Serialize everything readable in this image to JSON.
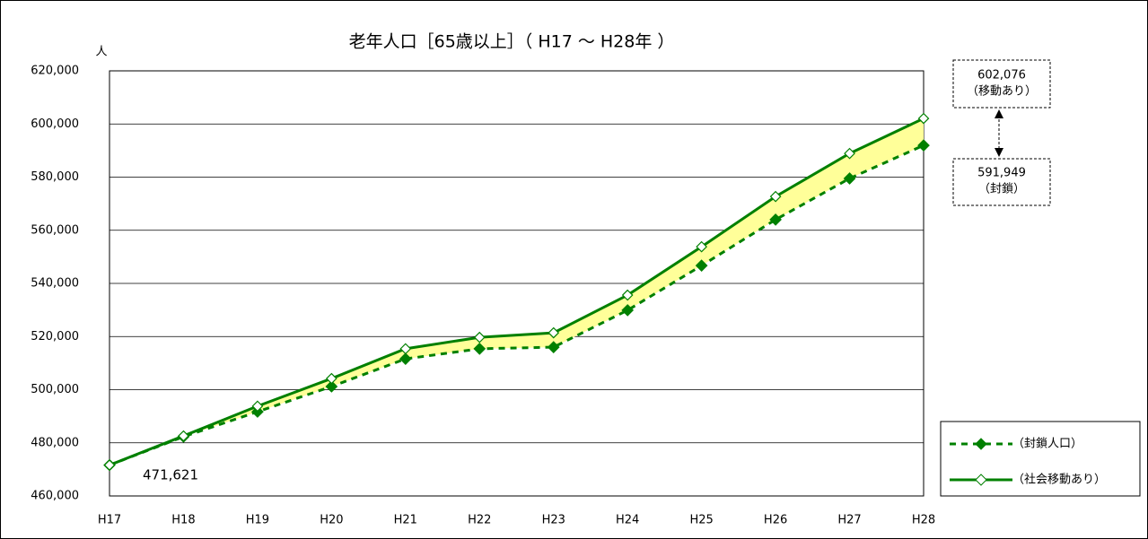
{
  "chart_data": {
    "type": "line",
    "title": "老年人口［65歳以上］（ H17 ～ H28年 ）",
    "y_label": "人",
    "categories": [
      "H17",
      "H18",
      "H19",
      "H20",
      "H21",
      "H22",
      "H23",
      "H24",
      "H25",
      "H26",
      "H27",
      "H28"
    ],
    "series": [
      {
        "name": "（封鎖人口）",
        "color": "#008000",
        "values": [
          471621,
          482300,
          491700,
          501200,
          511600,
          515400,
          516000,
          529900,
          546700,
          564000,
          579500,
          591949
        ],
        "value_labels": [
          "471,621",
          null,
          null,
          null,
          null,
          null,
          null,
          null,
          null,
          null,
          null,
          "591,949"
        ]
      },
      {
        "name": "（社会移動あり）",
        "color": "#008000",
        "values": [
          471621,
          482600,
          493800,
          504200,
          515400,
          519700,
          521400,
          535600,
          553800,
          572700,
          588900,
          602076
        ],
        "value_labels": [
          null,
          null,
          null,
          null,
          null,
          null,
          null,
          null,
          null,
          null,
          null,
          "602,076"
        ]
      }
    ],
    "annotations": [
      "（移動あり）",
      "（封鎖）"
    ],
    "ylim": [
      460000,
      620000
    ],
    "yticks": [
      {
        "value": 460000,
        "label": "460,000"
      },
      {
        "value": 480000,
        "label": "480,000"
      },
      {
        "value": 500000,
        "label": "500,000"
      },
      {
        "value": 520000,
        "label": "520,000"
      },
      {
        "value": 540000,
        "label": "540,000"
      },
      {
        "value": 560000,
        "label": "560,000"
      },
      {
        "value": 580000,
        "label": "580,000"
      },
      {
        "value": 600000,
        "label": "600,000"
      },
      {
        "value": 620000,
        "label": "620,000"
      }
    ],
    "grid": true,
    "fill_between": "#ffff99",
    "legend": "lower right"
  }
}
